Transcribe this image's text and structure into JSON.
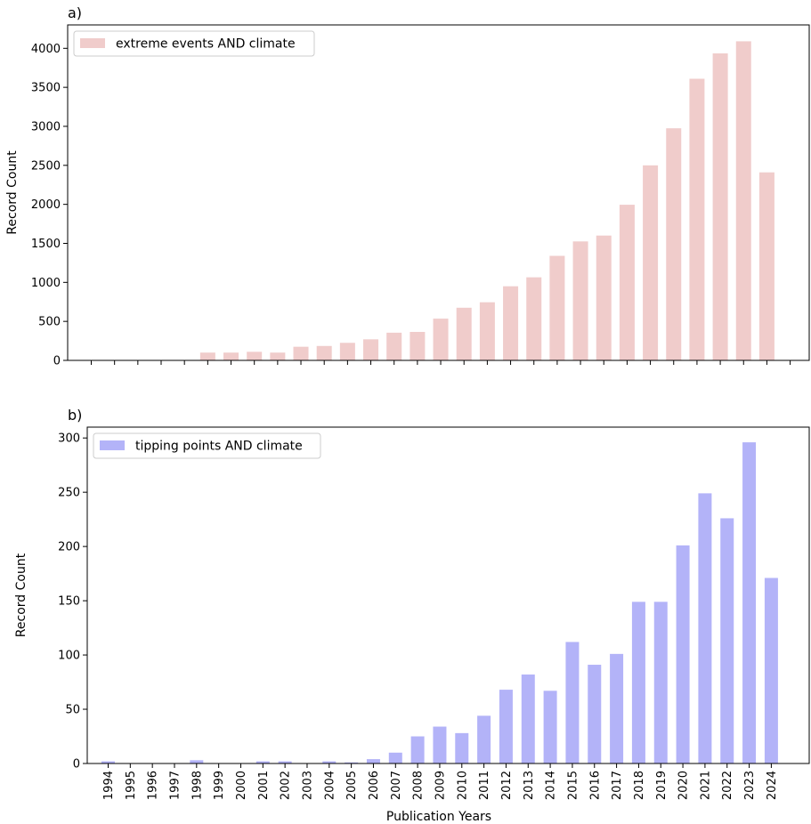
{
  "chart_data": [
    {
      "type": "bar",
      "panel_label": "a)",
      "categories": [
        "1994",
        "1995",
        "1996",
        "1997",
        "1998",
        "1999",
        "2000",
        "2001",
        "2002",
        "2003",
        "2004",
        "2005",
        "2006",
        "2007",
        "2008",
        "2009",
        "2010",
        "2011",
        "2012",
        "2013",
        "2014",
        "2015",
        "2016",
        "2017",
        "2018",
        "2019",
        "2020",
        "2021",
        "2022",
        "2023",
        "2024"
      ],
      "series": [
        {
          "name": "extreme events AND climate",
          "color": "#f0cccb",
          "values": [
            0,
            0,
            0,
            0,
            0,
            100,
            100,
            110,
            100,
            175,
            185,
            225,
            270,
            355,
            365,
            535,
            675,
            745,
            950,
            1065,
            1340,
            1525,
            1600,
            1995,
            2500,
            2975,
            3610,
            3935,
            4090,
            2410,
            null
          ]
        }
      ],
      "xlabel": "",
      "ylabel": "Record Count",
      "ylim": [
        0,
        4300
      ],
      "yticks": [
        0,
        500,
        1000,
        1500,
        2000,
        2500,
        3000,
        3500,
        4000
      ],
      "show_xtick_labels": false,
      "legend": "top-left",
      "grid": false
    },
    {
      "type": "bar",
      "panel_label": "b)",
      "categories": [
        "1994",
        "1995",
        "1996",
        "1997",
        "1998",
        "1999",
        "2000",
        "2001",
        "2002",
        "2003",
        "2004",
        "2005",
        "2006",
        "2007",
        "2008",
        "2009",
        "2010",
        "2011",
        "2012",
        "2013",
        "2014",
        "2015",
        "2016",
        "2017",
        "2018",
        "2019",
        "2020",
        "2021",
        "2022",
        "2023",
        "2024"
      ],
      "series": [
        {
          "name": "tipping points AND climate",
          "color": "#b3b3f8",
          "values": [
            2,
            0,
            0,
            0,
            3,
            0,
            0,
            2,
            2,
            0,
            2,
            1,
            4,
            10,
            25,
            34,
            28,
            44,
            68,
            82,
            67,
            112,
            91,
            101,
            149,
            149,
            201,
            249,
            226,
            296,
            171
          ]
        }
      ],
      "xlabel": "Publication Years",
      "ylabel": "Record Count",
      "ylim": [
        0,
        310
      ],
      "yticks": [
        0,
        50,
        100,
        150,
        200,
        250,
        300
      ],
      "show_xtick_labels": true,
      "legend": "top-left",
      "grid": false
    }
  ]
}
